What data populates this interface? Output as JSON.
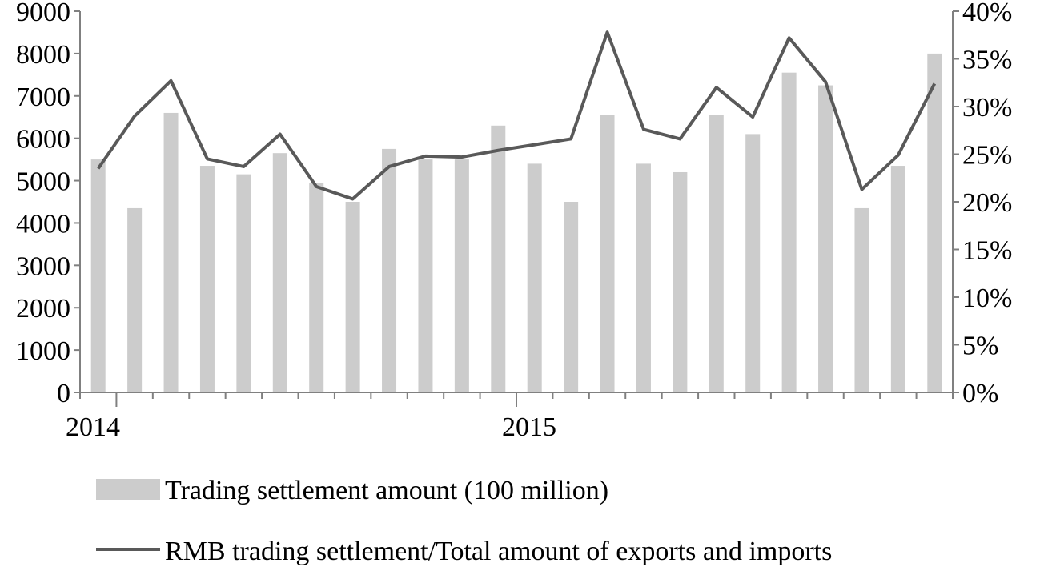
{
  "chart_data": {
    "type": "bar",
    "title": "",
    "xlabel": "",
    "x_tick_labels": [
      {
        "index": 0,
        "label": "2014"
      },
      {
        "index": 12,
        "label": "2015"
      }
    ],
    "categories": [
      "2014-01",
      "2014-02",
      "2014-03",
      "2014-04",
      "2014-05",
      "2014-06",
      "2014-07",
      "2014-08",
      "2014-09",
      "2014-10",
      "2014-11",
      "2014-12",
      "2015-01",
      "2015-02",
      "2015-03",
      "2015-04",
      "2015-05",
      "2015-06",
      "2015-07",
      "2015-08",
      "2015-09",
      "2015-10",
      "2015-11",
      "2015-12"
    ],
    "y_left": {
      "label": "",
      "lim": [
        0,
        9000
      ],
      "ticks": [
        "0",
        "1000",
        "2000",
        "3000",
        "4000",
        "5000",
        "6000",
        "7000",
        "8000",
        "9000"
      ]
    },
    "y_right": {
      "label": "",
      "lim": [
        0,
        40
      ],
      "unit": "%",
      "ticks": [
        "0%",
        "5%",
        "10%",
        "15%",
        "20%",
        "25%",
        "30%",
        "35%",
        "40%"
      ]
    },
    "grid": false,
    "legend_position": "bottom",
    "series": [
      {
        "name": "Trading settlement amount (100 million)",
        "kind": "bar",
        "axis": "left",
        "color": "#cccccc",
        "values": [
          5500,
          4350,
          6600,
          5350,
          5150,
          5650,
          4950,
          4500,
          5750,
          5500,
          5500,
          6300,
          5400,
          4500,
          6550,
          5400,
          5200,
          6550,
          6100,
          7550,
          7250,
          4350,
          5350,
          8000
        ]
      },
      {
        "name": "RMB trading settlement/Total amount of exports and imports",
        "kind": "line",
        "axis": "right",
        "color": "#595959",
        "values": [
          23.5,
          29.0,
          32.7,
          24.5,
          23.7,
          27.1,
          21.6,
          20.3,
          23.7,
          24.8,
          24.7,
          25.4,
          26.0,
          26.6,
          37.8,
          27.6,
          26.6,
          32.0,
          28.9,
          37.2,
          32.6,
          21.3,
          24.9,
          32.4
        ]
      }
    ]
  }
}
